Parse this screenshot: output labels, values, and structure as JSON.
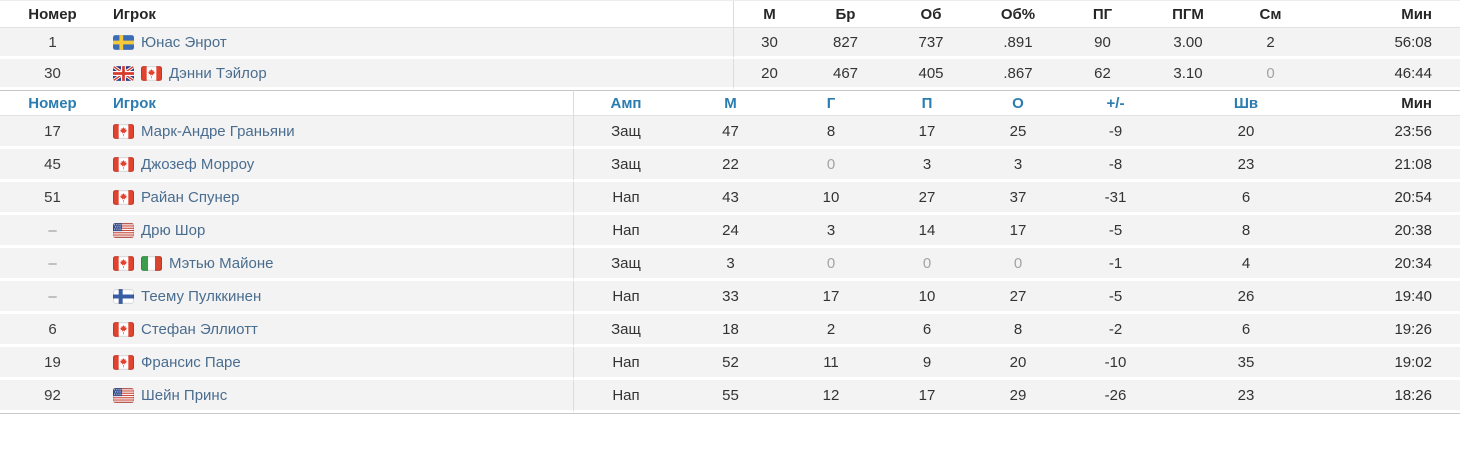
{
  "colors": {
    "header_link": "#2b7cb0",
    "player_link": "#4a6d8f",
    "row_bg": "#f3f3f3",
    "muted_zero": "#a3a3a3"
  },
  "goalie_table": {
    "columns": [
      {
        "id": "number",
        "label": "Номер"
      },
      {
        "id": "player",
        "label": "Игрок"
      },
      {
        "id": "m",
        "label": "М"
      },
      {
        "id": "br",
        "label": "Бр"
      },
      {
        "id": "ob",
        "label": "Об"
      },
      {
        "id": "ob_pct",
        "label": "Об%"
      },
      {
        "id": "pg",
        "label": "ПГ"
      },
      {
        "id": "pgm",
        "label": "ПГМ"
      },
      {
        "id": "sm",
        "label": "См"
      },
      {
        "id": "min",
        "label": "Мин"
      }
    ],
    "rows": [
      {
        "number": "1",
        "flags": [
          "swe"
        ],
        "name": "Юнас Энрот",
        "stats": [
          "30",
          "827",
          "737",
          ".891",
          "90",
          "3.00",
          "2",
          "56:08"
        ]
      },
      {
        "number": "30",
        "flags": [
          "gbr",
          "can"
        ],
        "name": "Дэнни Тэйлор",
        "stats": [
          "20",
          "467",
          "405",
          ".867",
          "62",
          "3.10",
          "0",
          "46:44"
        ]
      }
    ]
  },
  "skater_table": {
    "columns": [
      {
        "id": "number",
        "label": "Номер"
      },
      {
        "id": "player",
        "label": "Игрок"
      },
      {
        "id": "amp",
        "label": "Амп"
      },
      {
        "id": "m",
        "label": "М"
      },
      {
        "id": "g",
        "label": "Г"
      },
      {
        "id": "p",
        "label": "П"
      },
      {
        "id": "o",
        "label": "О"
      },
      {
        "id": "plus_minus",
        "label": "+/-"
      },
      {
        "id": "shv",
        "label": "Шв"
      },
      {
        "id": "min",
        "label": "Мин"
      }
    ],
    "rows": [
      {
        "number": "17",
        "flags": [
          "can"
        ],
        "name": "Марк-Андре Граньяни",
        "stats": [
          "Защ",
          "47",
          "8",
          "17",
          "25",
          "-9",
          "20",
          "23:56"
        ]
      },
      {
        "number": "45",
        "flags": [
          "can"
        ],
        "name": "Джозеф Морроу",
        "stats": [
          "Защ",
          "22",
          "0",
          "3",
          "3",
          "-8",
          "23",
          "21:08"
        ]
      },
      {
        "number": "51",
        "flags": [
          "can"
        ],
        "name": "Райан Спунер",
        "stats": [
          "Нап",
          "43",
          "10",
          "27",
          "37",
          "-31",
          "6",
          "20:54"
        ]
      },
      {
        "number": "–",
        "flags": [
          "usa"
        ],
        "name": "Дрю Шор",
        "stats": [
          "Нап",
          "24",
          "3",
          "14",
          "17",
          "-5",
          "8",
          "20:38"
        ]
      },
      {
        "number": "–",
        "flags": [
          "can",
          "ita"
        ],
        "name": "Мэтью Майоне",
        "stats": [
          "Защ",
          "3",
          "0",
          "0",
          "0",
          "-1",
          "4",
          "20:34"
        ]
      },
      {
        "number": "–",
        "flags": [
          "fin"
        ],
        "name": "Теему Пулккинен",
        "stats": [
          "Нап",
          "33",
          "17",
          "10",
          "27",
          "-5",
          "26",
          "19:40"
        ]
      },
      {
        "number": "6",
        "flags": [
          "can"
        ],
        "name": "Стефан Эллиотт",
        "stats": [
          "Защ",
          "18",
          "2",
          "6",
          "8",
          "-2",
          "6",
          "19:26"
        ]
      },
      {
        "number": "19",
        "flags": [
          "can"
        ],
        "name": "Франсис Паре",
        "stats": [
          "Нап",
          "52",
          "11",
          "9",
          "20",
          "-10",
          "35",
          "19:02"
        ]
      },
      {
        "number": "92",
        "flags": [
          "usa"
        ],
        "name": "Шейн Принс",
        "stats": [
          "Нап",
          "55",
          "12",
          "17",
          "29",
          "-26",
          "23",
          "18:26"
        ]
      }
    ]
  }
}
